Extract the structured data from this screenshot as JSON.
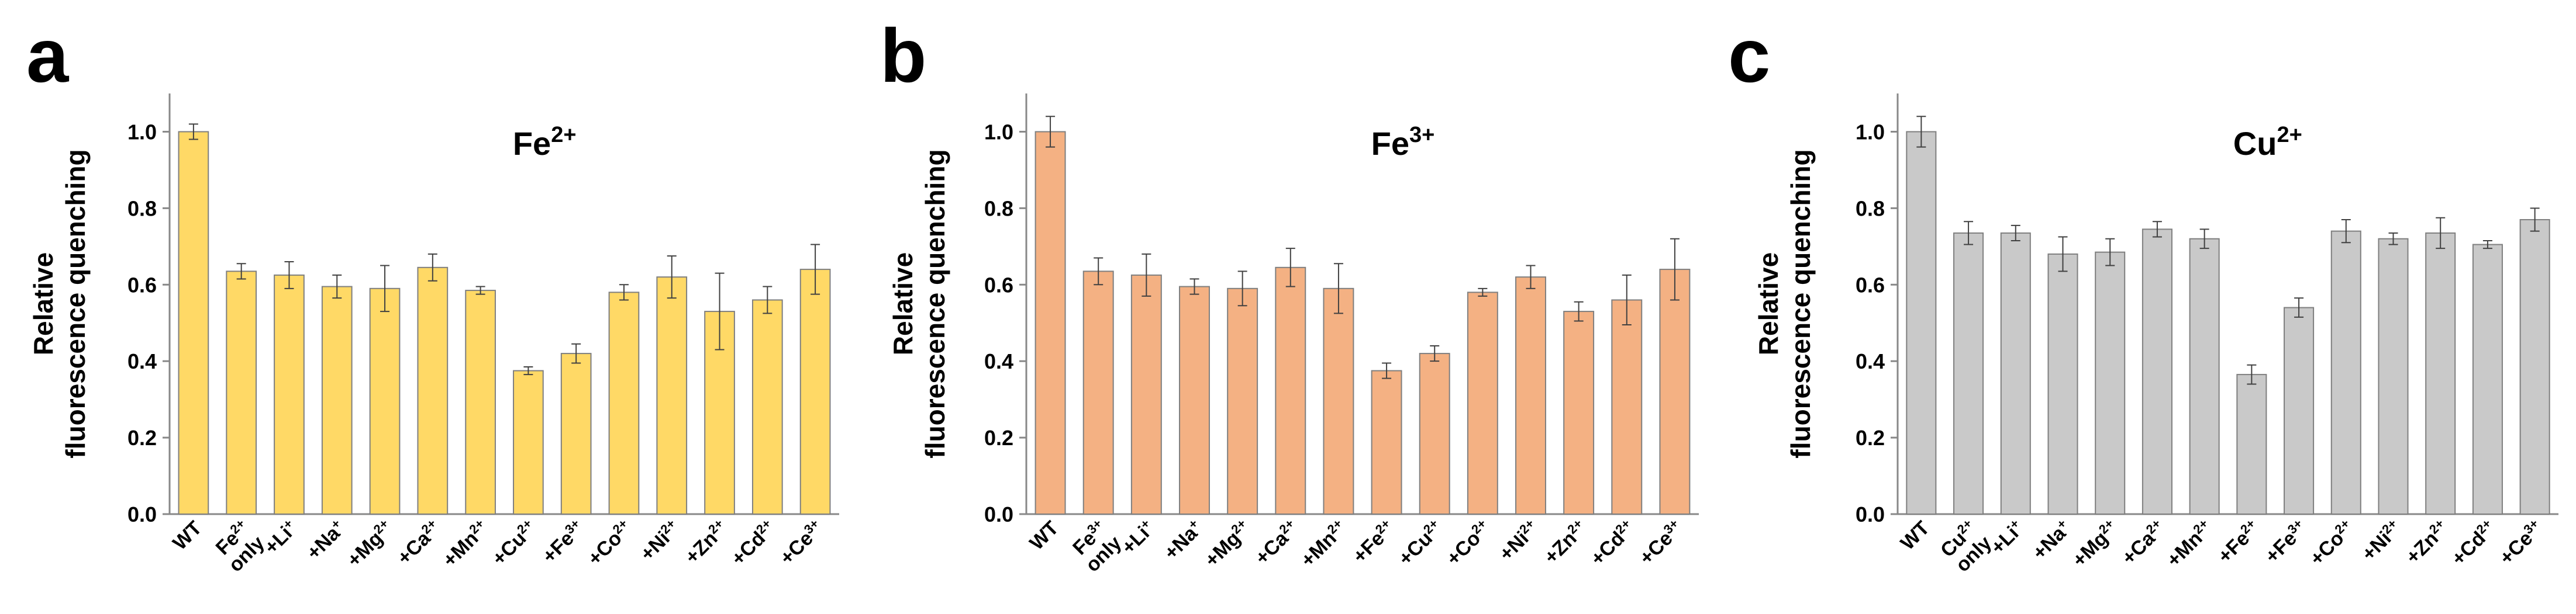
{
  "panels": [
    {
      "letter": "a",
      "ion": "Fe",
      "charge": "2+"
    },
    {
      "letter": "b",
      "ion": "Fe",
      "charge": "3+"
    },
    {
      "letter": "c",
      "ion": "Cu",
      "charge": "2+"
    }
  ],
  "chart_data": [
    {
      "type": "bar",
      "panel": "a",
      "title": "Fe2+",
      "ylabel": [
        "Relative",
        "fluorescence quenching"
      ],
      "ylim": [
        0,
        1.1
      ],
      "yticks": [
        "0.0",
        "0.2",
        "0.4",
        "0.6",
        "0.8",
        "1.0"
      ],
      "color": "#FFD966",
      "categories": [
        {
          "base": "WT"
        },
        {
          "base": "Fe",
          "sup": "2+",
          "line2": "only"
        },
        {
          "base": "+Li",
          "sup": "+"
        },
        {
          "base": "+Na",
          "sup": "+"
        },
        {
          "base": "+Mg",
          "sup": "2+"
        },
        {
          "base": "+Ca",
          "sup": "2+"
        },
        {
          "base": "+Mn",
          "sup": "2+"
        },
        {
          "base": "+Cu",
          "sup": "2+"
        },
        {
          "base": "+Fe",
          "sup": "3+"
        },
        {
          "base": "+Co",
          "sup": "2+"
        },
        {
          "base": "+Ni",
          "sup": "2+"
        },
        {
          "base": "+Zn",
          "sup": "2+"
        },
        {
          "base": "+Cd",
          "sup": "2+"
        },
        {
          "base": "+Ce",
          "sup": "3+"
        }
      ],
      "values": [
        1.0,
        0.635,
        0.625,
        0.595,
        0.59,
        0.645,
        0.585,
        0.375,
        0.42,
        0.58,
        0.62,
        0.53,
        0.56,
        0.64
      ],
      "errors": [
        0.02,
        0.02,
        0.035,
        0.03,
        0.06,
        0.035,
        0.01,
        0.01,
        0.025,
        0.02,
        0.055,
        0.1,
        0.035,
        0.065
      ]
    },
    {
      "type": "bar",
      "panel": "b",
      "title": "Fe3+",
      "ylabel": [
        "Relative",
        "fluorescence quenching"
      ],
      "ylim": [
        0,
        1.1
      ],
      "yticks": [
        "0.0",
        "0.2",
        "0.4",
        "0.6",
        "0.8",
        "1.0"
      ],
      "color": "#F4B183",
      "categories": [
        {
          "base": "WT"
        },
        {
          "base": "Fe",
          "sup": "3+",
          "line2": "only"
        },
        {
          "base": "+Li",
          "sup": "+"
        },
        {
          "base": "+Na",
          "sup": "+"
        },
        {
          "base": "+Mg",
          "sup": "2+"
        },
        {
          "base": "+Ca",
          "sup": "2+"
        },
        {
          "base": "+Mn",
          "sup": "2+"
        },
        {
          "base": "+Fe",
          "sup": "2+"
        },
        {
          "base": "+Cu",
          "sup": "2+"
        },
        {
          "base": "+Co",
          "sup": "2+"
        },
        {
          "base": "+Ni",
          "sup": "2+"
        },
        {
          "base": "+Zn",
          "sup": "2+"
        },
        {
          "base": "+Cd",
          "sup": "2+"
        },
        {
          "base": "+Ce",
          "sup": "3+"
        }
      ],
      "values": [
        1.0,
        0.635,
        0.625,
        0.595,
        0.59,
        0.645,
        0.59,
        0.375,
        0.42,
        0.58,
        0.62,
        0.53,
        0.56,
        0.64
      ],
      "errors": [
        0.04,
        0.035,
        0.055,
        0.02,
        0.045,
        0.05,
        0.065,
        0.02,
        0.02,
        0.01,
        0.03,
        0.025,
        0.065,
        0.08
      ]
    },
    {
      "type": "bar",
      "panel": "c",
      "title": "Cu2+",
      "ylabel": [
        "Relative",
        "fluorescence quenching"
      ],
      "ylim": [
        0,
        1.1
      ],
      "yticks": [
        "0.0",
        "0.2",
        "0.4",
        "0.6",
        "0.8",
        "1.0"
      ],
      "color": "#C9C9C9",
      "categories": [
        {
          "base": "WT"
        },
        {
          "base": "Cu",
          "sup": "2+",
          "line2": "only"
        },
        {
          "base": "+Li",
          "sup": "+"
        },
        {
          "base": "+Na",
          "sup": "+"
        },
        {
          "base": "+Mg",
          "sup": "2+"
        },
        {
          "base": "+Ca",
          "sup": "2+"
        },
        {
          "base": "+Mn",
          "sup": "2+"
        },
        {
          "base": "+Fe",
          "sup": "2+"
        },
        {
          "base": "+Fe",
          "sup": "3+"
        },
        {
          "base": "+Co",
          "sup": "2+"
        },
        {
          "base": "+Ni",
          "sup": "2+"
        },
        {
          "base": "+Zn",
          "sup": "2+"
        },
        {
          "base": "+Cd",
          "sup": "2+"
        },
        {
          "base": "+Ce",
          "sup": "3+"
        }
      ],
      "values": [
        1.0,
        0.735,
        0.735,
        0.68,
        0.685,
        0.745,
        0.72,
        0.365,
        0.54,
        0.74,
        0.72,
        0.735,
        0.705,
        0.77
      ],
      "errors": [
        0.04,
        0.03,
        0.02,
        0.045,
        0.035,
        0.02,
        0.025,
        0.025,
        0.025,
        0.03,
        0.015,
        0.04,
        0.01,
        0.03
      ]
    }
  ]
}
